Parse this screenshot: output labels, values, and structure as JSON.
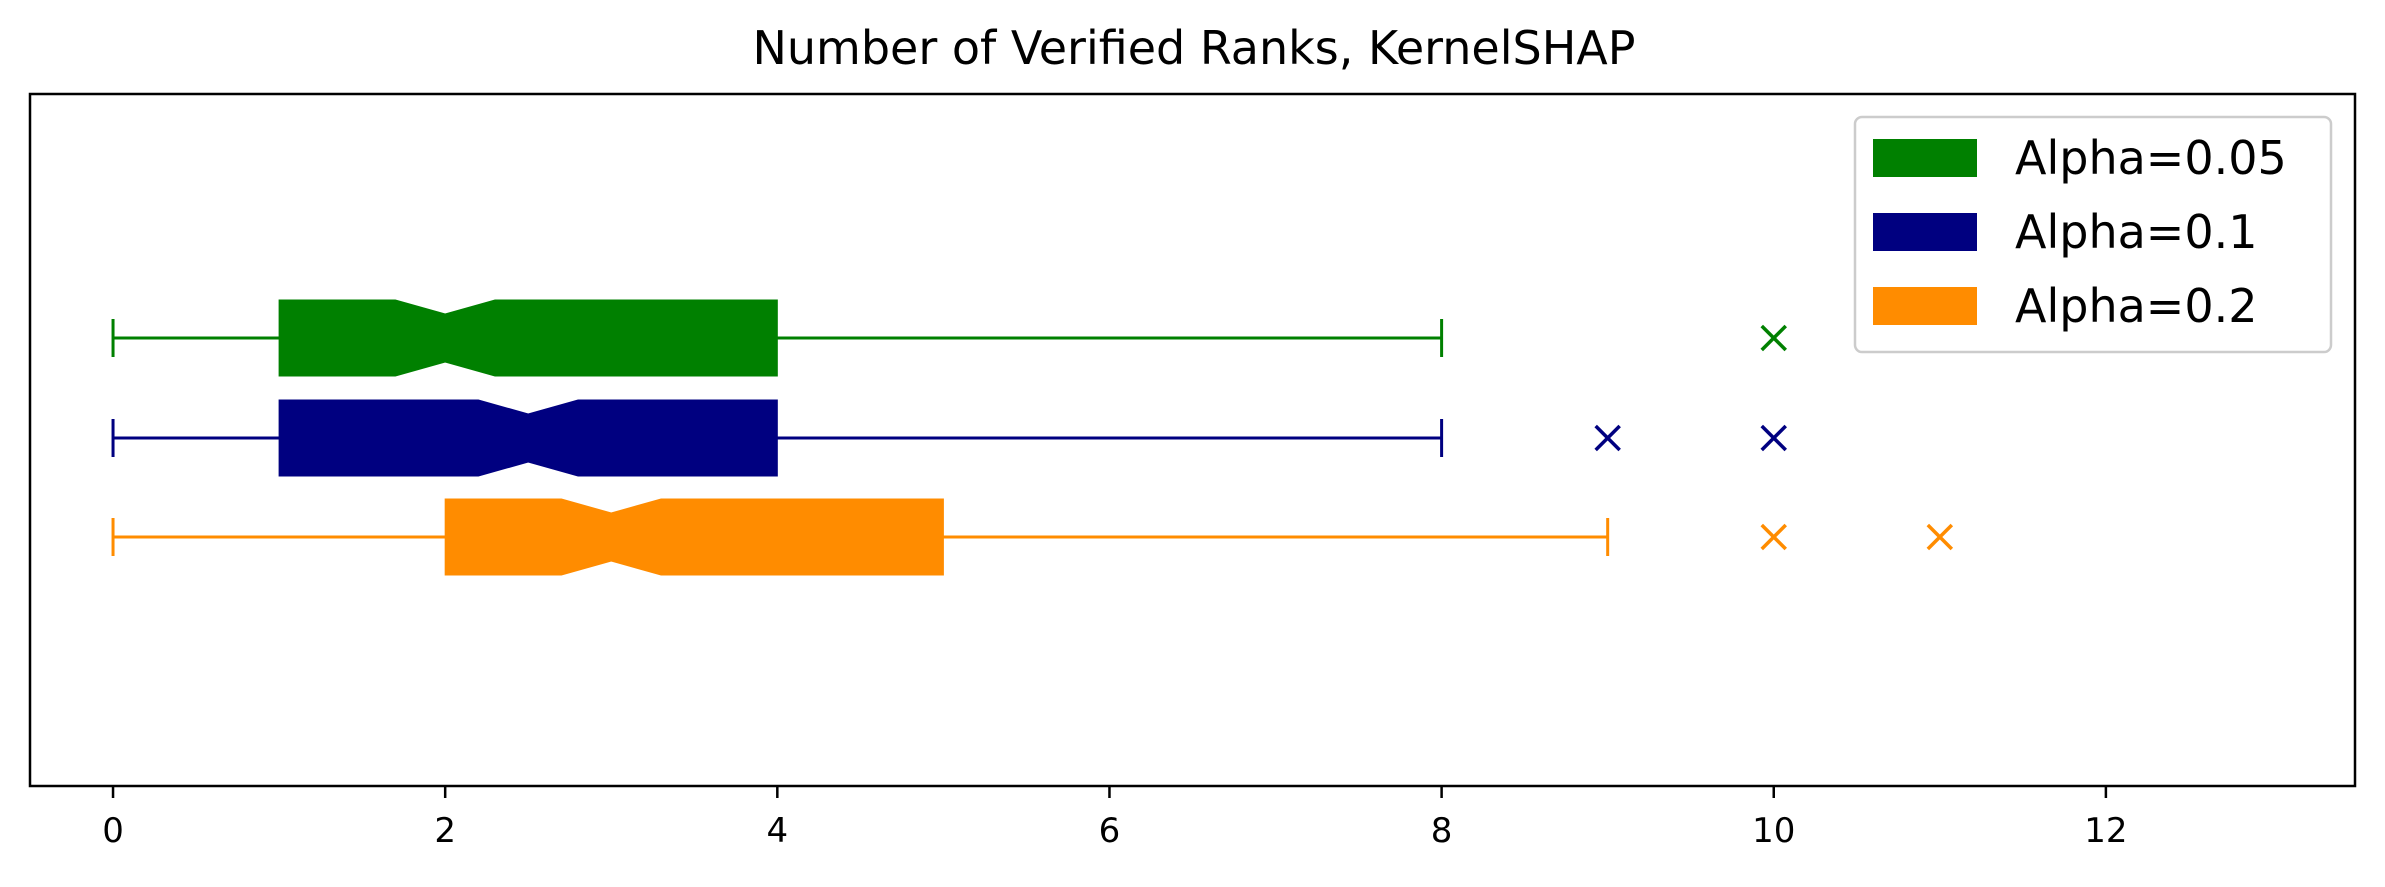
{
  "chart_data": {
    "type": "boxplot",
    "orientation": "horizontal",
    "notched": true,
    "title": "Number of Verified Ranks, KernelSHAP",
    "xlabel": "",
    "ylabel": "",
    "xlim": [
      -0.5,
      13.5
    ],
    "xticks": [
      0,
      2,
      4,
      6,
      8,
      10,
      12
    ],
    "xtick_labels": [
      "0",
      "2",
      "4",
      "6",
      "8",
      "10",
      "12"
    ],
    "grid": false,
    "legend_position": "top-right",
    "series": [
      {
        "name": "Alpha=0.05",
        "color": "#008000",
        "whisker_low": 0,
        "q1": 1,
        "median": 2,
        "q3": 4,
        "whisker_high": 8,
        "notch_low": 1.7,
        "notch_high": 2.3,
        "outliers": [
          10
        ]
      },
      {
        "name": "Alpha=0.1",
        "color": "#000080",
        "whisker_low": 0,
        "q1": 1,
        "median": 2.5,
        "q3": 4,
        "whisker_high": 8,
        "notch_low": 2.2,
        "notch_high": 2.8,
        "outliers": [
          9,
          10
        ]
      },
      {
        "name": "Alpha=0.2",
        "color": "#ff8c00",
        "whisker_low": 0,
        "q1": 2,
        "median": 3,
        "q3": 5,
        "whisker_high": 9,
        "notch_low": 2.7,
        "notch_high": 3.3,
        "outliers": [
          10,
          11
        ]
      }
    ]
  }
}
